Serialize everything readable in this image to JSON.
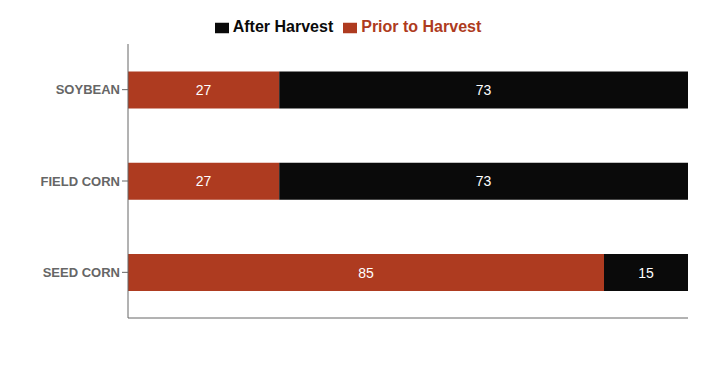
{
  "chart_data": {
    "type": "bar",
    "orientation": "horizontal",
    "stacked": true,
    "categories": [
      "SEED CORN",
      "FIELD CORN",
      "SOYBEAN"
    ],
    "series": [
      {
        "name": "Prior to Harvest",
        "color": "#ae3b20",
        "values": [
          85,
          27,
          27
        ]
      },
      {
        "name": "After Harvest",
        "color": "#0a0a0a",
        "values": [
          15,
          73,
          73
        ]
      }
    ],
    "xlim": [
      0,
      100
    ],
    "tick_labels": "y",
    "data_labels": true,
    "legend": "top",
    "grid": false
  }
}
